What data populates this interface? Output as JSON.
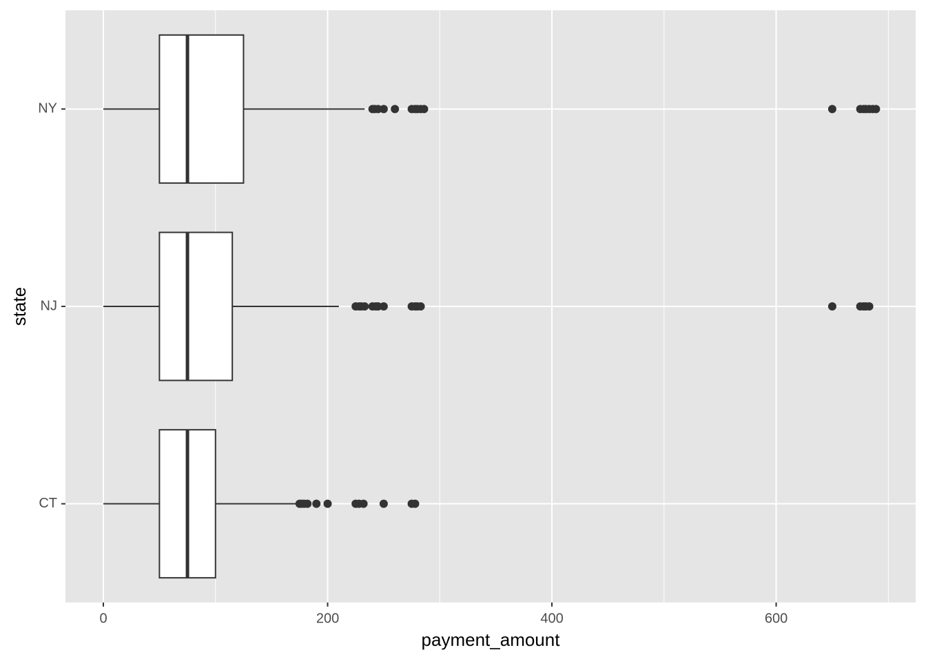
{
  "chart_data": {
    "type": "boxplot",
    "orientation": "horizontal",
    "x_label": "payment_amount",
    "y_label": "state",
    "categories": [
      "CT",
      "NJ",
      "NY"
    ],
    "boxes": [
      {
        "min": 0,
        "q1": 50,
        "median": 75,
        "q3": 100,
        "max": 172,
        "outliers": [
          175,
          177,
          179,
          182,
          190,
          200,
          225,
          228,
          232,
          250,
          275,
          278
        ]
      },
      {
        "min": 0,
        "q1": 50,
        "median": 75,
        "q3": 115,
        "max": 210,
        "outliers": [
          225,
          228,
          230,
          233,
          240,
          243,
          245,
          250,
          275,
          278,
          280,
          283,
          650,
          675,
          678,
          680,
          683
        ]
      },
      {
        "min": 0,
        "q1": 50,
        "median": 75,
        "q3": 125,
        "max": 233,
        "outliers": [
          240,
          242,
          245,
          250,
          260,
          275,
          278,
          280,
          283,
          286,
          650,
          675,
          678,
          680,
          683,
          686,
          689
        ]
      }
    ],
    "fill": "#ffffff",
    "stroke": "#333333",
    "outlier_color": "#333333",
    "xlim": [
      -33.8,
      724.4
    ],
    "xticks": [
      0,
      200,
      400,
      600
    ],
    "xminorticks": [
      100,
      300,
      500,
      700
    ],
    "panel_color": "#e5e5e5",
    "grid": true
  }
}
